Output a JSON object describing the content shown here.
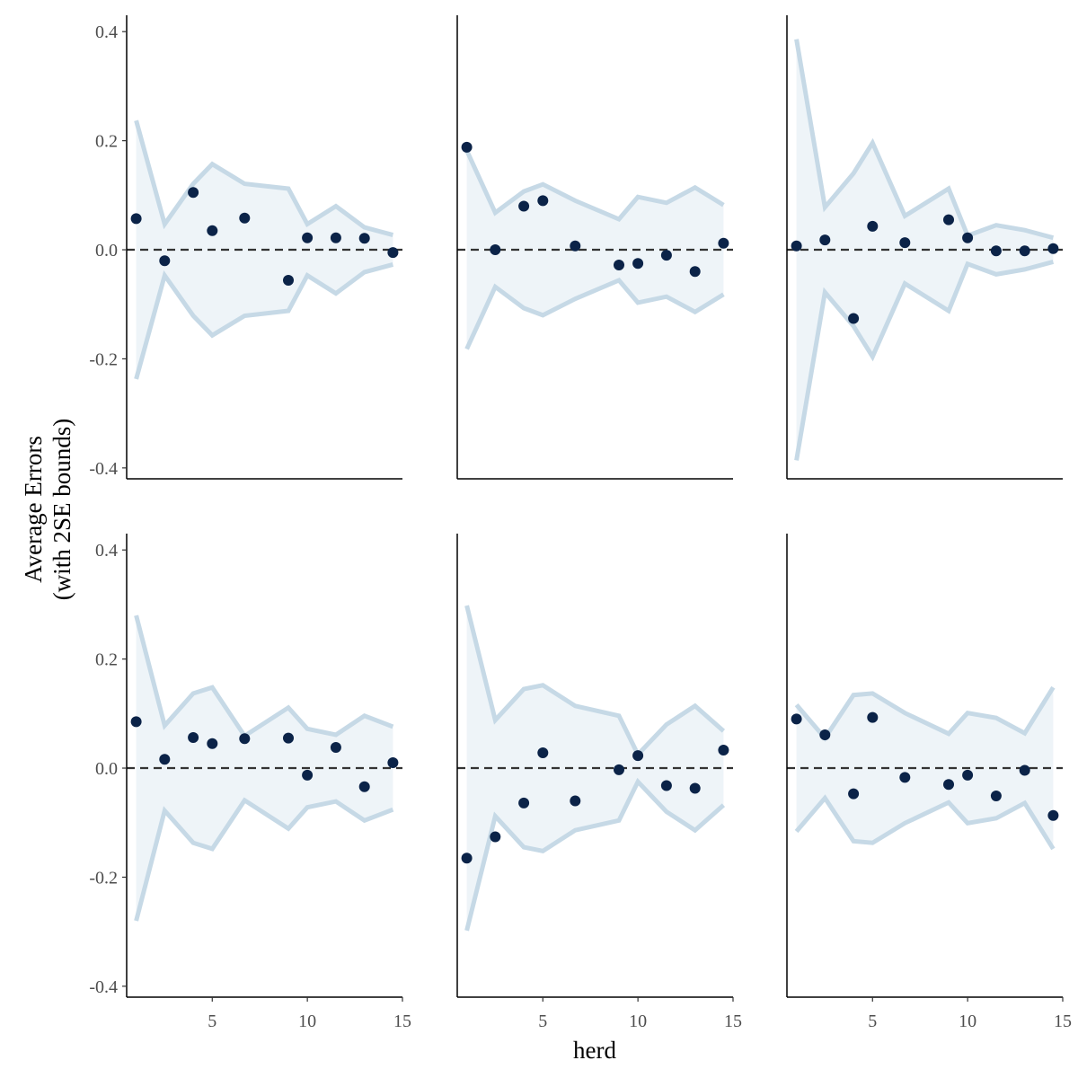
{
  "chart_data": {
    "type": "scatter",
    "xlabel": "herd",
    "ylabel": [
      "Average Errors",
      "(with 2SE bounds)"
    ],
    "xlim": [
      0.5,
      15
    ],
    "ylim": [
      -0.42,
      0.43
    ],
    "x_ticks": [
      5,
      10,
      15
    ],
    "y_ticks": [
      -0.4,
      -0.2,
      0.0,
      0.2,
      0.4
    ],
    "y_tick_labels": [
      "-0.4",
      "-0.2",
      "0.0",
      "0.2",
      "0.4"
    ],
    "reference_line": 0,
    "colors": {
      "points": "#0b2348",
      "band_line": "#c6d9e6",
      "band_fill": "#eef4f8",
      "zero_line": "#333333"
    },
    "panels": [
      {
        "x": [
          1,
          2.5,
          4,
          5,
          6.7,
          9,
          10,
          11.5,
          13,
          14.5
        ],
        "points": [
          0.057,
          -0.02,
          0.105,
          0.035,
          0.058,
          -0.056,
          0.022,
          0.022,
          0.021,
          -0.005
        ],
        "bound": [
          0.237,
          0.047,
          0.121,
          0.157,
          0.121,
          0.112,
          0.047,
          0.08,
          0.041,
          0.027
        ]
      },
      {
        "x": [
          1,
          2.5,
          4,
          5,
          6.7,
          9,
          10,
          11.5,
          13,
          14.5
        ],
        "points": [
          0.188,
          0.0,
          0.08,
          0.09,
          0.007,
          -0.028,
          -0.025,
          -0.01,
          -0.04,
          0.012
        ],
        "bound": [
          0.182,
          0.068,
          0.107,
          0.12,
          0.09,
          0.056,
          0.097,
          0.086,
          0.114,
          0.082
        ]
      },
      {
        "x": [
          1,
          2.5,
          4,
          5,
          6.7,
          9,
          10,
          11.5,
          13,
          14.5
        ],
        "points": [
          0.007,
          0.018,
          -0.126,
          0.043,
          0.013,
          0.055,
          0.022,
          -0.002,
          -0.002,
          0.002
        ],
        "bound": [
          0.386,
          0.078,
          0.14,
          0.196,
          0.062,
          0.112,
          0.026,
          0.045,
          0.036,
          0.022
        ]
      },
      {
        "x": [
          1,
          2.5,
          4,
          5,
          6.7,
          9,
          10,
          11.5,
          13,
          14.5
        ],
        "points": [
          0.085,
          0.016,
          0.056,
          0.045,
          0.054,
          0.055,
          -0.013,
          0.038,
          -0.034,
          0.01
        ],
        "bound": [
          0.28,
          0.078,
          0.137,
          0.148,
          0.059,
          0.111,
          0.072,
          0.061,
          0.096,
          0.076
        ]
      },
      {
        "x": [
          1,
          2.5,
          4,
          5,
          6.7,
          9,
          10,
          11.5,
          13,
          14.5
        ],
        "points": [
          -0.165,
          -0.126,
          -0.064,
          0.028,
          -0.06,
          -0.003,
          0.023,
          -0.032,
          -0.037,
          0.033
        ],
        "bound": [
          0.298,
          0.088,
          0.145,
          0.152,
          0.114,
          0.096,
          0.025,
          0.08,
          0.114,
          0.068
        ]
      },
      {
        "x": [
          1,
          2.5,
          4,
          5,
          6.7,
          9,
          10,
          11.5,
          13,
          14.5
        ],
        "points": [
          0.09,
          0.061,
          -0.047,
          0.093,
          -0.017,
          -0.03,
          -0.013,
          -0.051,
          -0.004,
          -0.087
        ],
        "bound": [
          0.116,
          0.055,
          0.134,
          0.137,
          0.101,
          0.063,
          0.101,
          0.092,
          0.064,
          0.148
        ]
      }
    ]
  }
}
